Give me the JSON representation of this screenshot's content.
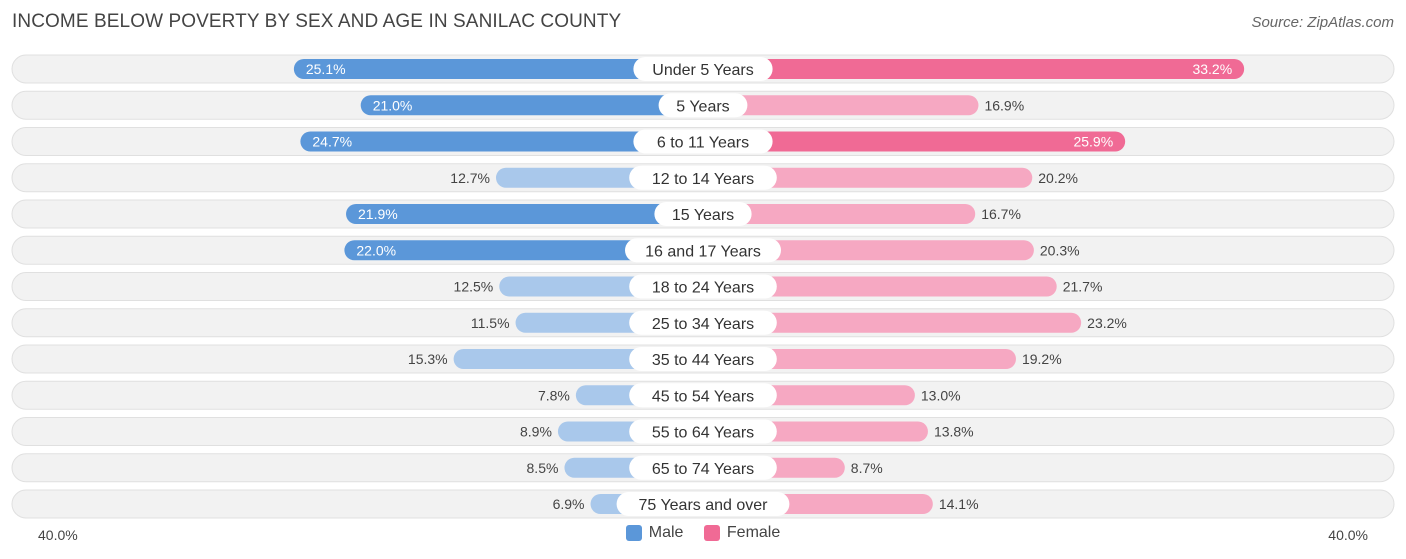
{
  "chart_data": {
    "type": "bar",
    "orientation": "horizontal-diverging",
    "title": "INCOME BELOW POVERTY BY SEX AND AGE IN SANILAC COUNTY",
    "source": "Source: ZipAtlas.com",
    "categories": [
      "Under 5 Years",
      "5 Years",
      "6 to 11 Years",
      "12 to 14 Years",
      "15 Years",
      "16 and 17 Years",
      "18 to 24 Years",
      "25 to 34 Years",
      "35 to 44 Years",
      "45 to 54 Years",
      "55 to 64 Years",
      "65 to 74 Years",
      "75 Years and over"
    ],
    "series": [
      {
        "name": "Male",
        "values": [
          25.1,
          21.0,
          24.7,
          12.7,
          21.9,
          22.0,
          12.5,
          11.5,
          15.3,
          7.8,
          8.9,
          8.5,
          6.9
        ],
        "labels": [
          "25.1%",
          "21.0%",
          "24.7%",
          "12.7%",
          "21.9%",
          "22.0%",
          "12.5%",
          "11.5%",
          "15.3%",
          "7.8%",
          "8.9%",
          "8.5%",
          "6.9%"
        ]
      },
      {
        "name": "Female",
        "values": [
          33.2,
          16.9,
          25.9,
          20.2,
          16.7,
          20.3,
          21.7,
          23.2,
          19.2,
          13.0,
          13.8,
          8.7,
          14.1
        ],
        "labels": [
          "33.2%",
          "16.9%",
          "25.9%",
          "20.2%",
          "16.7%",
          "20.3%",
          "21.7%",
          "23.2%",
          "19.2%",
          "13.0%",
          "13.8%",
          "8.7%",
          "14.1%"
        ]
      }
    ],
    "xlim": [
      -40,
      40
    ],
    "axis_left_label": "40.0%",
    "axis_right_label": "40.0%",
    "legend_position": "bottom-center",
    "colors": {
      "male_strong": "#5b97d9",
      "male_light": "#a9c8eb",
      "female_strong": "#f06a95",
      "female_light": "#f6a8c2",
      "row_bg": "#f2f2f2",
      "row_border": "#e0e0e0"
    }
  }
}
